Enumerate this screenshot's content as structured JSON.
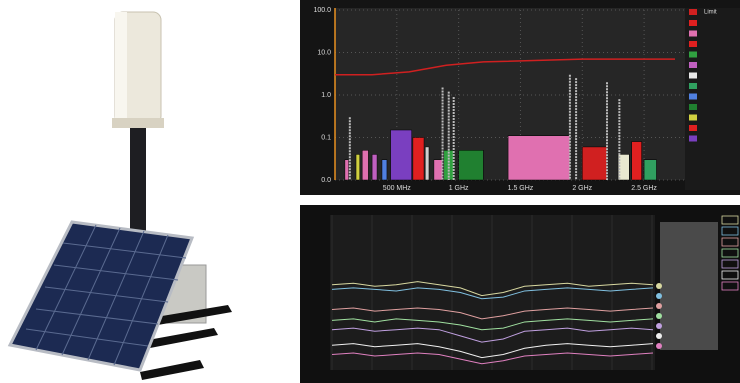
{
  "chart_data": [
    {
      "type": "spectrum",
      "xlim": [
        0,
        2750
      ],
      "ylim": [
        0.01,
        100
      ],
      "log_y": true,
      "grid": true,
      "xticks": [
        {
          "value": 500,
          "label": "500 MHz"
        },
        {
          "value": 1000,
          "label": "1 GHz"
        },
        {
          "value": 1500,
          "label": "1.5 GHz"
        },
        {
          "value": 2000,
          "label": "2 GHz"
        },
        {
          "value": 2500,
          "label": "2.5 GHz"
        }
      ],
      "yticks": [
        {
          "value": 100,
          "label": "100.0"
        },
        {
          "value": 10,
          "label": "10.0"
        },
        {
          "value": 1,
          "label": "1.0"
        },
        0.1,
        {
          "value": 0.01,
          "label": "0.0"
        }
      ],
      "bands": {
        "start": [
          80,
          170,
          220,
          300,
          380,
          450,
          630,
          730,
          800,
          880,
          1000,
          1400,
          2000,
          2290,
          2400,
          2500
        ],
        "end": [
          110,
          200,
          270,
          340,
          420,
          620,
          720,
          760,
          870,
          960,
          1200,
          1900,
          2200,
          2380,
          2480,
          2600
        ],
        "values": [
          0.03,
          0.04,
          0.05,
          0.04,
          0.03,
          0.15,
          0.1,
          0.06,
          0.03,
          0.05,
          0.05,
          0.11,
          0.06,
          0.04,
          0.08,
          0.03
        ],
        "colors": [
          "#e070b0",
          "#d0d040",
          "#e070b0",
          "#c060c0",
          "#5080e0",
          "#7a3fc0",
          "#e02020",
          "#d0d0d0",
          "#e070b0",
          "#30a040",
          "#208030",
          "#e070b0",
          "#d02020",
          "#e8e8d0",
          "#e02020",
          "#30a060"
        ]
      },
      "peaks": {
        "x": [
          120,
          870,
          920,
          960,
          1900,
          1950,
          2200,
          2300
        ],
        "values": [
          0.3,
          1.5,
          1.2,
          0.9,
          3,
          2.5,
          2,
          0.8
        ]
      },
      "limit": {
        "name": "Limit",
        "color": "#d02020",
        "x": [
          0,
          300,
          600,
          900,
          1200,
          2000,
          2750
        ],
        "values": [
          3,
          3,
          3.5,
          5,
          6,
          7,
          7
        ]
      }
    },
    {
      "type": "line",
      "ylim": [
        0,
        100
      ],
      "series": [
        {
          "color": "#d8d8a0",
          "values": [
            55,
            56,
            54,
            55,
            57,
            55,
            53,
            48,
            50,
            54,
            55,
            56,
            54,
            55,
            56,
            55
          ]
        },
        {
          "color": "#80c0e0",
          "values": [
            52,
            53,
            52,
            51,
            53,
            52,
            50,
            46,
            47,
            51,
            52,
            53,
            52,
            51,
            52,
            53
          ]
        },
        {
          "color": "#e0a0a0",
          "values": [
            39,
            40,
            38,
            39,
            40,
            39,
            37,
            33,
            35,
            38,
            39,
            40,
            39,
            38,
            39,
            40
          ]
        },
        {
          "color": "#a0e0a0",
          "values": [
            32,
            33,
            31,
            33,
            32,
            31,
            29,
            26,
            27,
            31,
            32,
            33,
            32,
            31,
            32,
            33
          ]
        },
        {
          "color": "#c0a0e0",
          "values": [
            26,
            27,
            25,
            26,
            27,
            26,
            22,
            18,
            20,
            25,
            26,
            27,
            25,
            26,
            27,
            26
          ]
        },
        {
          "color": "#f0f0f0",
          "values": [
            16,
            17,
            15,
            16,
            17,
            15,
            12,
            8,
            10,
            14,
            16,
            17,
            16,
            15,
            16,
            17
          ]
        },
        {
          "color": "#e080c0",
          "values": [
            10,
            11,
            9,
            10,
            11,
            10,
            7,
            4,
            6,
            9,
            10,
            11,
            10,
            9,
            10,
            11
          ]
        }
      ]
    }
  ]
}
